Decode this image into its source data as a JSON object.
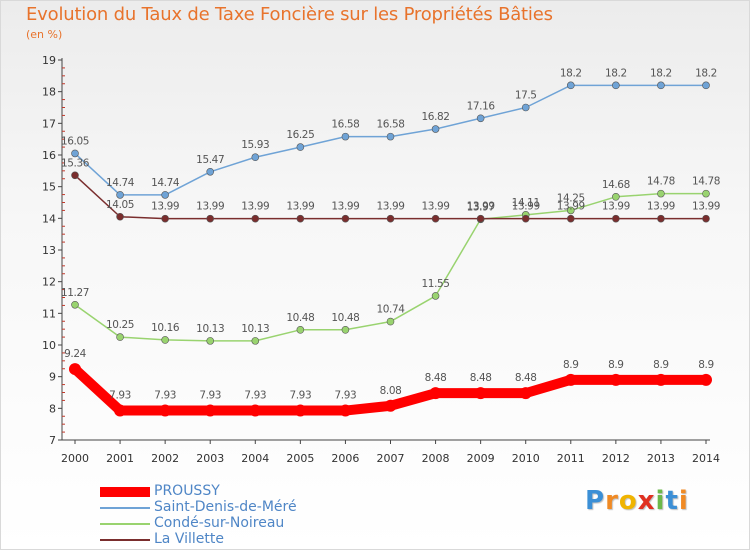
{
  "title": "Evolution du Taux de Taxe Foncière sur les Propriétés Bâties",
  "subtitle": "(en %)",
  "logo": {
    "letters": [
      "P",
      "r",
      "o",
      "x",
      "i",
      "t",
      "i"
    ],
    "colors": [
      "#3b8fd6",
      "#f08a24",
      "#f0b400",
      "#e03020",
      "#6cb84a",
      "#3b8fd6",
      "#f08a24"
    ]
  },
  "chart_data": {
    "type": "line",
    "title": "Evolution du Taux de Taxe Foncière sur les Propriétés Bâties",
    "ylabel": "(en %)",
    "xlabel": "",
    "x": [
      "2000",
      "2001",
      "2002",
      "2003",
      "2004",
      "2005",
      "2006",
      "2007",
      "2008",
      "2009",
      "2010",
      "2011",
      "2012",
      "2013",
      "2014"
    ],
    "ylim": [
      7,
      19
    ],
    "yticks": [
      7,
      8,
      9,
      10,
      11,
      12,
      13,
      14,
      15,
      16,
      17,
      18,
      19
    ],
    "grid": false,
    "legend": "bottom-left",
    "series": [
      {
        "name": "PROUSSY",
        "color": "#ff0000",
        "values": [
          9.24,
          7.93,
          7.93,
          7.93,
          7.93,
          7.93,
          7.93,
          8.08,
          8.48,
          8.48,
          8.48,
          8.9,
          8.9,
          8.9,
          8.9
        ],
        "labels": [
          "9.24",
          "7.93",
          "7.93",
          "7.93",
          "7.93",
          "7.93",
          "7.93",
          "8.08",
          "8.48",
          "8.48",
          "8.48",
          "8.9",
          "8.9",
          "8.9",
          "8.9"
        ]
      },
      {
        "name": "Saint-Denis-de-Méré",
        "color": "#6fa3d6",
        "values": [
          16.05,
          14.74,
          14.74,
          15.47,
          15.93,
          16.25,
          16.58,
          16.58,
          16.82,
          17.16,
          17.5,
          18.2,
          18.2,
          18.2,
          18.2
        ],
        "labels": [
          "16.05",
          "14.74",
          "14.74",
          "15.47",
          "15.93",
          "16.25",
          "16.58",
          "16.58",
          "16.82",
          "17.16",
          "17.5",
          "18.2",
          "18.2",
          "18.2",
          "18.2"
        ]
      },
      {
        "name": "Condé-sur-Noireau",
        "color": "#99d36f",
        "values": [
          11.27,
          10.25,
          10.16,
          10.13,
          10.13,
          10.48,
          10.48,
          10.74,
          11.55,
          13.97,
          14.11,
          14.25,
          14.68,
          14.78,
          14.78
        ],
        "labels": [
          "11.27",
          "10.25",
          "10.16",
          "10.13",
          "10.13",
          "10.48",
          "10.48",
          "10.74",
          "11.55",
          "13.97",
          "14.11",
          "14.25",
          "14.68",
          "14.78",
          "14.78"
        ]
      },
      {
        "name": "La Villette",
        "color": "#7a2e2e",
        "values": [
          15.36,
          14.05,
          13.99,
          13.99,
          13.99,
          13.99,
          13.99,
          13.99,
          13.99,
          13.99,
          13.99,
          13.99,
          13.99,
          13.99,
          13.99
        ],
        "labels": [
          "15.36",
          "14.05",
          "13.99",
          "13.99",
          "13.99",
          "13.99",
          "13.99",
          "13.99",
          "13.99",
          "13.99",
          "13.99",
          "13.99",
          "13.99",
          "13.99",
          "13.99"
        ]
      }
    ]
  }
}
